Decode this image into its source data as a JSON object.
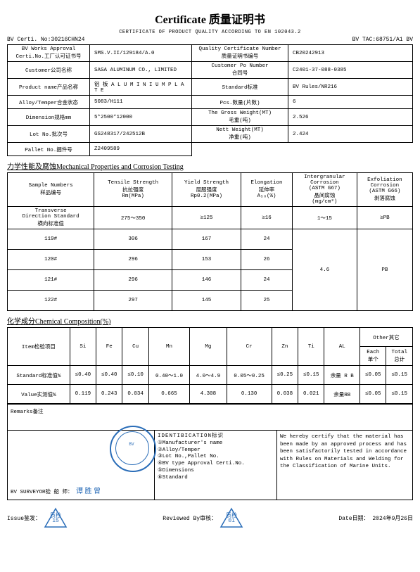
{
  "title": "Certificate 质量证明书",
  "subheader": "CERTIFICATE OF PRODUCT QUALITY ACCORDING TO EN 102043.2",
  "top_left_label": "BV Certi. No:",
  "top_left_val": "30216CHN24",
  "top_right_label": "BV TAC:",
  "top_right_val": "68751/A1 BV",
  "info": [
    {
      "l1": "BV Works Approval\nCerti.No.工厂认可证书号",
      "v1": "SMS.V.II/129184/A.0",
      "l2": "Quality Certificate Number\n质量证明书编号",
      "v2": "CB20242913"
    },
    {
      "l1": "Customer公司名称",
      "v1": "SASA ALUMINUM CO., LIMITED",
      "l2": "Customer Po Number\n合同号",
      "v2": "C2401-37-088-0385"
    },
    {
      "l1": "Product name产品名称",
      "v1": "铝 板 A L U M I N I U M   P L A T E",
      "l2": "Standard标准",
      "v2": "BV     Rules/NR216"
    },
    {
      "l1": "Alloy/Temper合金状态",
      "v1": "5083/H111",
      "l2": "Pcs.数量(片数)",
      "v2": "6"
    },
    {
      "l1": "Dimension规格mm",
      "v1": "5*2500*12000",
      "l2": "The Gross Weight(MT)\n毛重(吨)",
      "v2": "2.526"
    },
    {
      "l1": "Lot No.批次号",
      "v1": "GS248317/242512B",
      "l2": "Nett Weight(MT)\n净重(吨)",
      "v2": "2.424"
    },
    {
      "l1": "Pallet No.捆件号",
      "v1": "Z2409589",
      "l2": "",
      "v2": ""
    }
  ],
  "sec_mech": "力学性能及腐蚀Mechanical Properties and Corrosion Testing",
  "mech_headers": [
    "Sample Numbers\n样品编号",
    "Tensile Strength\n抗拉强度\nRm(MPa)",
    "Yield Strength\n屈服强度\nRp0.2(MPa)",
    "Elongation\n延伸率\nA₅₀(%)",
    "Intergranular\nCorrosion\n(ASTM  G67)\n晶间腐蚀\n(mg/cm²)",
    "Exfoliation\nCorrosion\n(ASTM  G66)\n剥落腐蚀"
  ],
  "mech_rows": [
    [
      "Transverse\nDirection Standard\n横向标准值",
      "275～350",
      "≥125",
      "≥16",
      "1～15",
      "≥PB"
    ],
    [
      "119#",
      "306",
      "167",
      "24",
      "",
      ""
    ],
    [
      "120#",
      "296",
      "153",
      "26",
      "",
      ""
    ],
    [
      "121#",
      "296",
      "146",
      "24",
      "",
      ""
    ],
    [
      "122#",
      "297",
      "145",
      "25",
      "",
      ""
    ]
  ],
  "mech_ig_val": "4.6",
  "mech_ex_val": "PB",
  "sec_chem": "化学成分Chemical Composition(%)",
  "chem_headers": [
    "Item检验项目",
    "Si",
    "Fe",
    "Cu",
    "Mn",
    "Mg",
    "Cr",
    "Zn",
    "Ti",
    "AL",
    "Each\n单个",
    "Total\n总计"
  ],
  "chem_other": "Other其它",
  "chem_rows": [
    [
      "Standard标准值%",
      "≤0.40",
      "≤0.40",
      "≤0.10",
      "0.40～1.0",
      "4.0～4.9",
      "0.05～0.25",
      "≤0.25",
      "≤0.15",
      "余量 R B",
      "≤0.05",
      "≤0.15"
    ],
    [
      "Value实测值%",
      "0.119",
      "0.243",
      "0.034",
      "0.665",
      "4.308",
      "0.130",
      "0.038",
      "0.021",
      "余量RB",
      "≤0.05",
      "≤0.15"
    ]
  ],
  "remarks_label": "Remarks备注",
  "ident_title": "IDENTIBICATION标识",
  "ident_items": [
    "①Manufacturer's name",
    "②Alloy/Temper",
    "③Lot No.,Pallet No.",
    "④BV type Approval Certi.No.",
    "⑤Dimensions",
    "⑥Standard"
  ],
  "cert_text": "We hereby certify that the material has been made by an approved process and has been satisfactorily tested in accordance with Rules on Materials and Welding for the Classification of Marine Units.",
  "surveyor_label": "BV   SURVEYOR验 船 师：",
  "surveyor_name": "谭 胜 曾",
  "issue_label": "Issue鉴发：",
  "reviewed_label": "Reviewed By审核：",
  "date_label": "Date日期：",
  "date_val": "2024年9月26日",
  "tri1_label": "质检",
  "tri1_num": "15",
  "tri2_label": "质检",
  "tri2_num": "01"
}
